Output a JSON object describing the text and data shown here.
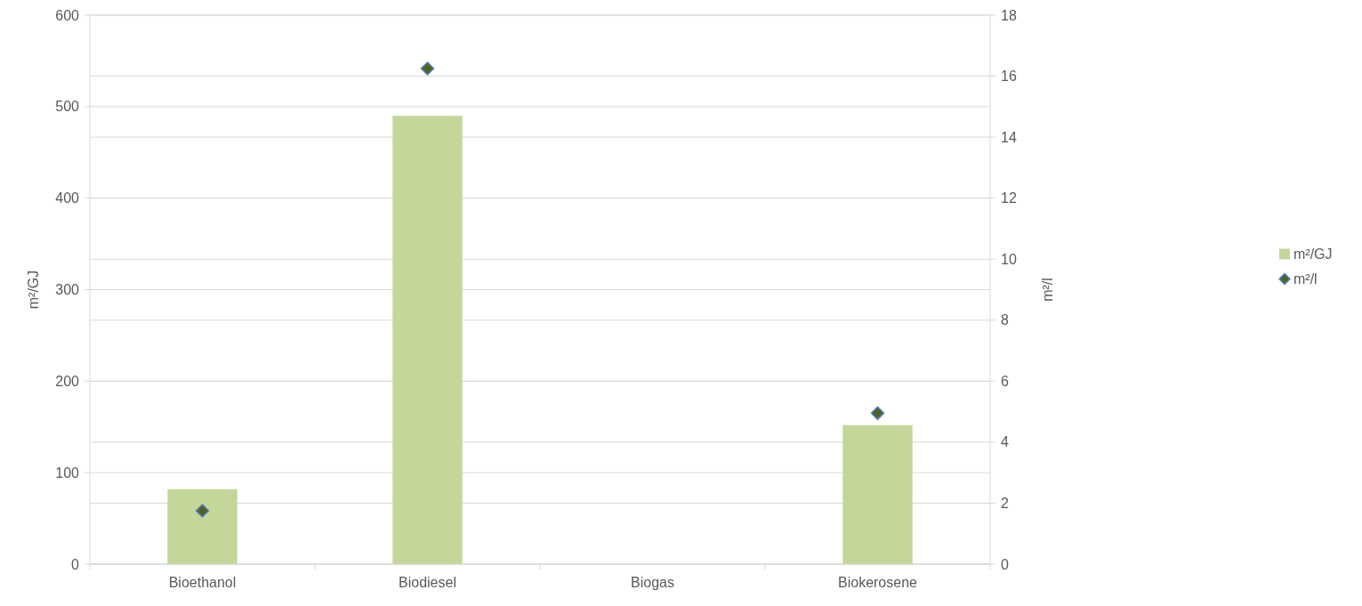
{
  "chart_data": {
    "type": "bar",
    "categories": [
      "Bioethanol",
      "Biodiesel",
      "Biogas",
      "Biokerosene"
    ],
    "series": [
      {
        "name": "m²/GJ",
        "color": "#c4d79b",
        "values": [
          82,
          490,
          null,
          152
        ]
      },
      {
        "name": "m²/l",
        "type": "scatter",
        "axis": "y2",
        "color": "#4f6228",
        "marker": "diamond",
        "values": [
          1.75,
          16.25,
          null,
          4.95
        ]
      }
    ],
    "ylabel": "m²/GJ",
    "y2label": "m²/l",
    "ylim": [
      0,
      600
    ],
    "yticks": [
      0,
      100,
      200,
      300,
      400,
      500,
      600
    ],
    "y2lim": [
      0,
      18
    ],
    "y2ticks": [
      0,
      2,
      4,
      6,
      8,
      10,
      12,
      14,
      16,
      18
    ],
    "grid": true,
    "legend": "right"
  }
}
